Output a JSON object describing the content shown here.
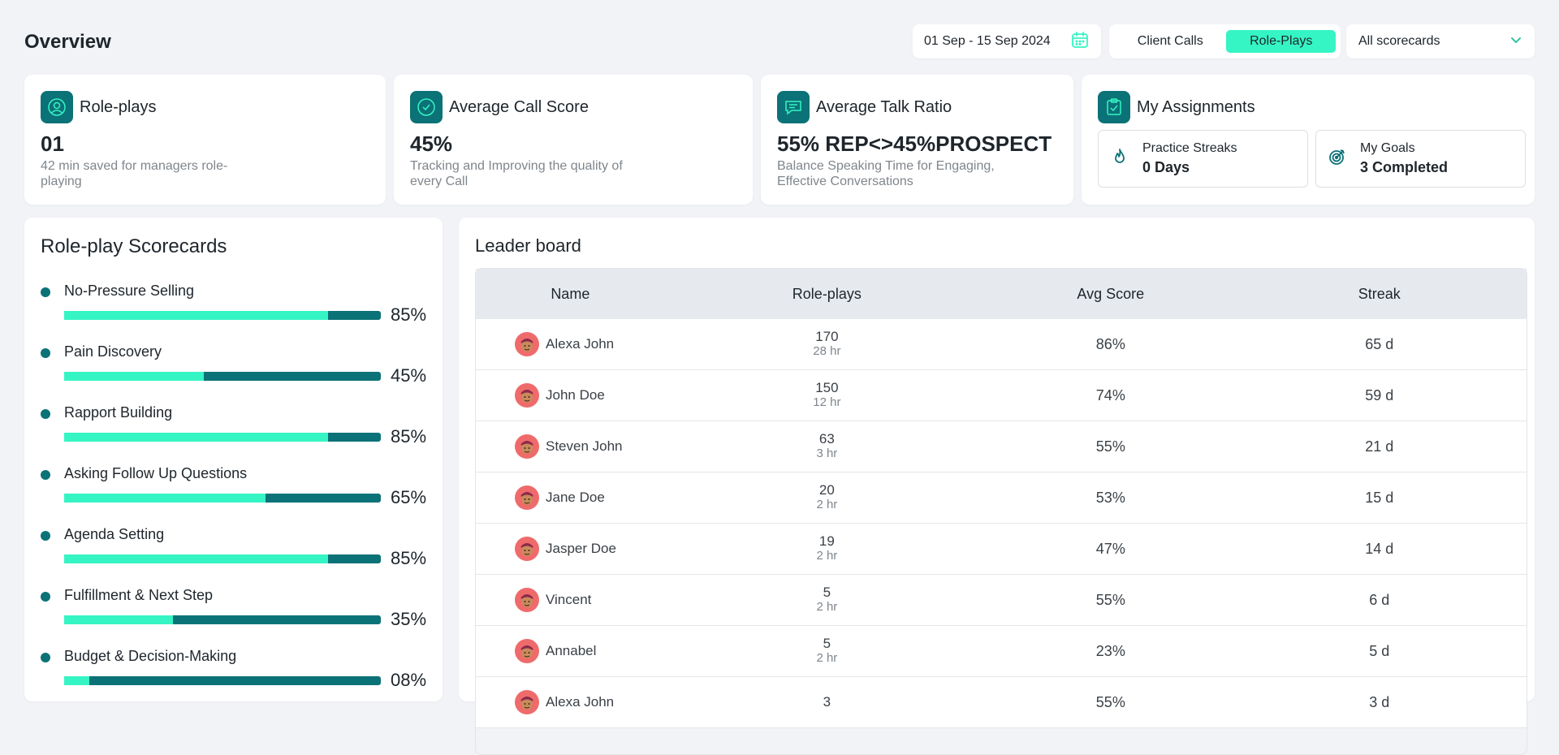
{
  "header": {
    "title": "Overview"
  },
  "controls": {
    "date_range": "01 Sep - 15 Sep 2024",
    "tabs": [
      {
        "label": "Client Calls",
        "active": false
      },
      {
        "label": "Role-Plays",
        "active": true
      }
    ],
    "scorecard_filter": "All scorecards"
  },
  "stats": {
    "roleplays": {
      "title": "Role-plays",
      "value": "01",
      "desc": "42 min saved for managers role-playing"
    },
    "avg_call": {
      "title": "Average Call Score",
      "value": "45%",
      "desc": "Tracking and Improving the quality of every Call"
    },
    "talk_ratio": {
      "title": "Average Talk Ratio",
      "value": "55% REP<>45%PROSPECT",
      "desc": "Balance Speaking Time for Engaging, Effective Conversations"
    },
    "assignments": {
      "title": "My Assignments",
      "streaks": {
        "label": "Practice Streaks",
        "value": "0 Days"
      },
      "goals": {
        "label": "My Goals",
        "value": "3 Completed"
      }
    }
  },
  "scorecards": {
    "title": "Role-play Scorecards",
    "items": [
      {
        "name": "No-Pressure Selling",
        "percent": 85,
        "label": "85%"
      },
      {
        "name": "Pain Discovery",
        "percent": 45,
        "label": "45%"
      },
      {
        "name": "Rapport Building",
        "percent": 85,
        "label": "85%"
      },
      {
        "name": "Asking Follow Up Questions",
        "percent": 65,
        "label": "65%"
      },
      {
        "name": "Agenda Setting",
        "percent": 85,
        "label": "85%"
      },
      {
        "name": "Fulfillment & Next Step",
        "percent": 35,
        "label": "35%"
      },
      {
        "name": "Budget & Decision-Making",
        "percent": 8,
        "label": "08%"
      }
    ]
  },
  "leaderboard": {
    "title": "Leader board",
    "columns": {
      "name": "Name",
      "roleplays": "Role-plays",
      "avg": "Avg Score",
      "streak": "Streak"
    },
    "rows": [
      {
        "name": "Alexa John",
        "roleplays": "170",
        "hours": "28 hr",
        "avg": "86%",
        "streak": "65 d"
      },
      {
        "name": "John Doe",
        "roleplays": "150",
        "hours": "12 hr",
        "avg": "74%",
        "streak": "59 d"
      },
      {
        "name": "Steven John",
        "roleplays": "63",
        "hours": "3 hr",
        "avg": "55%",
        "streak": "21 d"
      },
      {
        "name": "Jane Doe",
        "roleplays": "20",
        "hours": "2 hr",
        "avg": "53%",
        "streak": "15 d"
      },
      {
        "name": "Jasper Doe",
        "roleplays": "19",
        "hours": "2 hr",
        "avg": "47%",
        "streak": "14 d"
      },
      {
        "name": "Vincent",
        "roleplays": "5",
        "hours": "2 hr",
        "avg": "55%",
        "streak": "6 d"
      },
      {
        "name": "Annabel",
        "roleplays": "5",
        "hours": "2 hr",
        "avg": "23%",
        "streak": "5 d"
      },
      {
        "name": "Alexa John",
        "roleplays": "3",
        "hours": "",
        "avg": "55%",
        "streak": "3 d"
      }
    ]
  },
  "colors": {
    "accent": "#35f5c4",
    "brand": "#0b7277",
    "background": "#f1f3f7"
  },
  "icons": [
    "calendar-icon",
    "chevron-down-icon",
    "roleplay-icon",
    "call-score-icon",
    "talk-ratio-icon",
    "assignments-icon",
    "flame-icon",
    "target-icon",
    "avatar"
  ]
}
